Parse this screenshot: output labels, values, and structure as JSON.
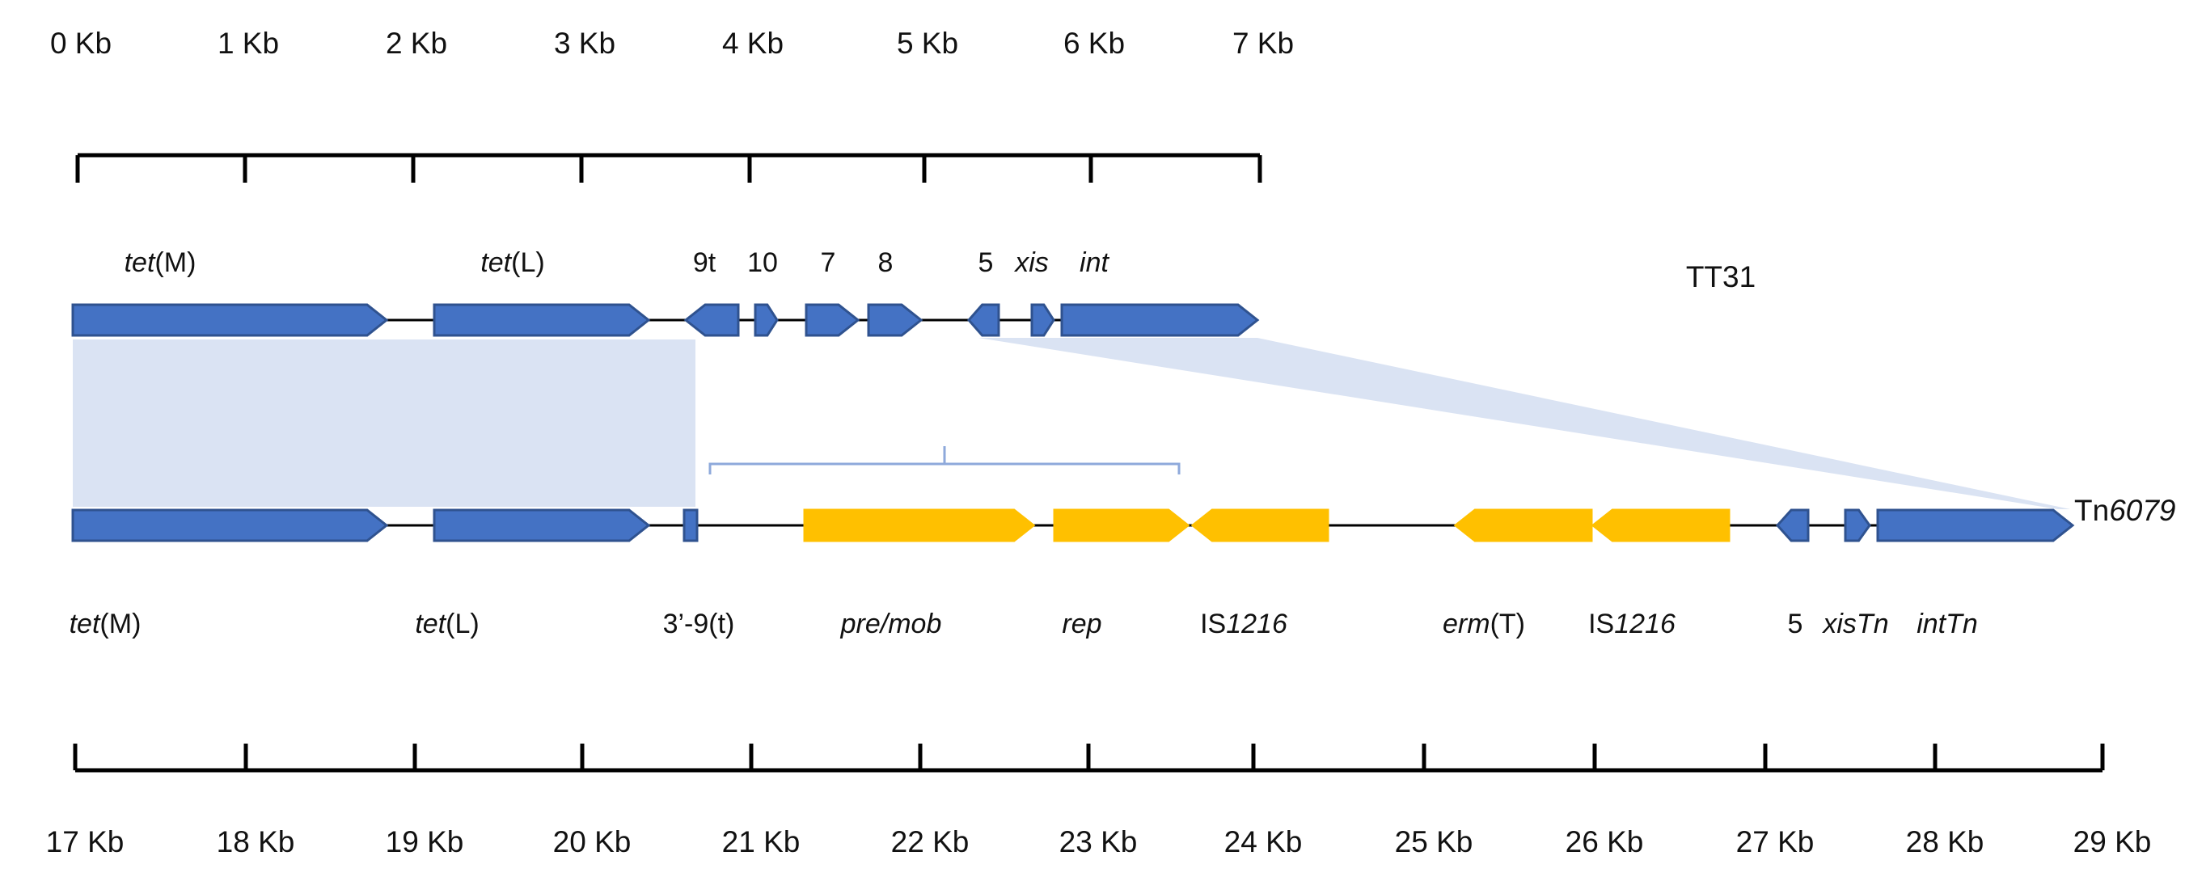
{
  "colors": {
    "core_gene": "#4472C4",
    "core_gene_stroke": "#2F528F",
    "inserted_gene": "#FFC000",
    "homology_shade": "#DAE3F3",
    "bracket": "#8EA9DB",
    "line": "#000000"
  },
  "top_scale": {
    "ticks": [
      "0 Kb",
      "1 Kb",
      "2 Kb",
      "3 Kb",
      "4 Kb",
      "5 Kb",
      "6 Kb",
      "7 Kb"
    ]
  },
  "bottom_scale": {
    "ticks": [
      "17 Kb",
      "18  Kb",
      "19 Kb",
      "20 Kb",
      "21 Kb",
      "22 Kb",
      "23 Kb",
      "24 Kb",
      "25 Kb",
      "26 Kb",
      "27 Kb",
      "28 Kb",
      "29 Kb"
    ]
  },
  "top_element": {
    "name": "TT31",
    "labels": [
      {
        "id": "tetM",
        "parts": [
          {
            "t": "tet",
            "i": true
          },
          {
            "t": "(M)",
            "i": false
          }
        ]
      },
      {
        "id": "tetL",
        "parts": [
          {
            "t": "tet",
            "i": true
          },
          {
            "t": "(L)",
            "i": false
          }
        ]
      },
      {
        "id": "9t",
        "parts": [
          {
            "t": "9t",
            "i": false
          }
        ]
      },
      {
        "id": "10",
        "parts": [
          {
            "t": "10",
            "i": false
          }
        ]
      },
      {
        "id": "7",
        "parts": [
          {
            "t": "7",
            "i": false
          }
        ]
      },
      {
        "id": "8",
        "parts": [
          {
            "t": "8",
            "i": false
          }
        ]
      },
      {
        "id": "5",
        "parts": [
          {
            "t": "5",
            "i": false
          }
        ]
      },
      {
        "id": "xis",
        "parts": [
          {
            "t": "xis",
            "i": true
          }
        ]
      },
      {
        "id": "int",
        "parts": [
          {
            "t": "int",
            "i": true
          }
        ]
      }
    ]
  },
  "bottom_element": {
    "name_parts": [
      {
        "t": "Tn",
        "i": false
      },
      {
        "t": "6079",
        "i": true
      }
    ],
    "labels": [
      {
        "id": "tetM",
        "parts": [
          {
            "t": "tet",
            "i": true
          },
          {
            "t": "(M)",
            "i": false
          }
        ]
      },
      {
        "id": "tetL",
        "parts": [
          {
            "t": "tet",
            "i": true
          },
          {
            "t": "(L)",
            "i": false
          }
        ]
      },
      {
        "id": "3p9t",
        "parts": [
          {
            "t": "3’-9(t)",
            "i": false
          }
        ]
      },
      {
        "id": "premob",
        "parts": [
          {
            "t": "pre/mob",
            "i": true
          }
        ]
      },
      {
        "id": "rep",
        "parts": [
          {
            "t": "rep",
            "i": true
          }
        ]
      },
      {
        "id": "is1216a",
        "parts": [
          {
            "t": "IS",
            "i": false
          },
          {
            "t": "1216",
            "i": true
          }
        ]
      },
      {
        "id": "ermT",
        "parts": [
          {
            "t": "erm",
            "i": true
          },
          {
            "t": "(T)",
            "i": false
          }
        ]
      },
      {
        "id": "is1216b",
        "parts": [
          {
            "t": "IS",
            "i": false
          },
          {
            "t": "1216",
            "i": true
          }
        ]
      },
      {
        "id": "5",
        "parts": [
          {
            "t": "5",
            "i": false
          }
        ]
      },
      {
        "id": "xisTn",
        "parts": [
          {
            "t": "xisTn",
            "i": true
          }
        ]
      },
      {
        "id": "intTn",
        "parts": [
          {
            "t": "intTn",
            "i": true
          }
        ]
      }
    ]
  }
}
